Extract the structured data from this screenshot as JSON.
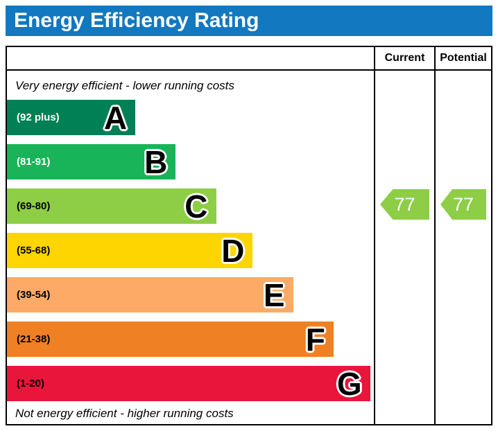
{
  "header": {
    "title": "Energy Efficiency Rating",
    "bg_color": "#1278bf"
  },
  "table": {
    "current_label": "Current",
    "potential_label": "Potential"
  },
  "notes": {
    "top": "Very energy efficient - lower running costs",
    "bottom": "Not energy efficient - higher running costs"
  },
  "chart_data": {
    "type": "bar",
    "title": "Energy Efficiency Rating",
    "bands": [
      {
        "letter": "A",
        "range": "(92 plus)",
        "min": 92,
        "color": "#008054",
        "text_color": "#ffffff",
        "width_pct": 35
      },
      {
        "letter": "B",
        "range": "(81-91)",
        "min": 81,
        "max": 91,
        "color": "#19b459",
        "text_color": "#ffffff",
        "width_pct": 46
      },
      {
        "letter": "C",
        "range": "(69-80)",
        "min": 69,
        "max": 80,
        "color": "#8dce46",
        "text_color": "#000000",
        "width_pct": 57
      },
      {
        "letter": "D",
        "range": "(55-68)",
        "min": 55,
        "max": 68,
        "color": "#ffd500",
        "text_color": "#000000",
        "width_pct": 67
      },
      {
        "letter": "E",
        "range": "(39-54)",
        "min": 39,
        "max": 54,
        "color": "#fcaa65",
        "text_color": "#000000",
        "width_pct": 78
      },
      {
        "letter": "F",
        "range": "(21-38)",
        "min": 21,
        "max": 38,
        "color": "#ef8023",
        "text_color": "#000000",
        "width_pct": 89
      },
      {
        "letter": "G",
        "range": "(1-20)",
        "min": 1,
        "max": 20,
        "color": "#e9153b",
        "text_color": "#000000",
        "width_pct": 99
      }
    ],
    "current": {
      "value": 77,
      "band": "C",
      "arrow_color": "#8dce46"
    },
    "potential": {
      "value": 77,
      "band": "C",
      "arrow_color": "#8dce46"
    }
  }
}
